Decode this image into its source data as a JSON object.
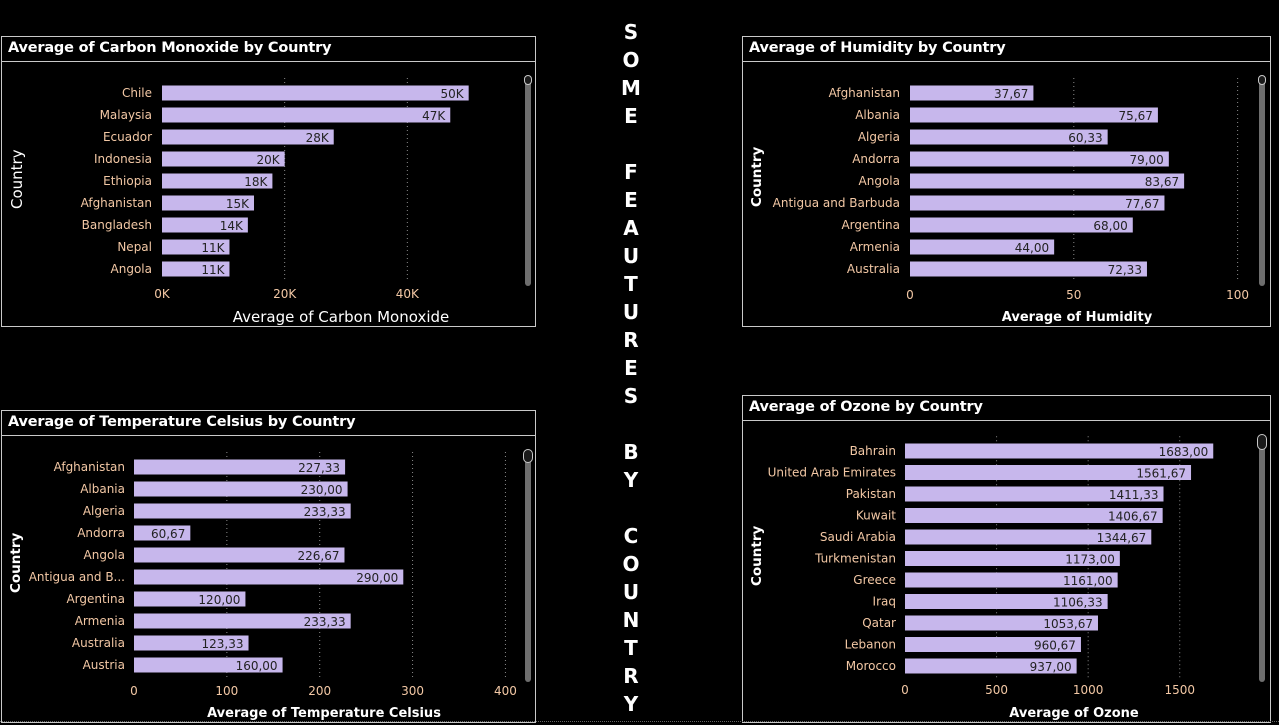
{
  "page_title": "SOME FEAUTURES BY COUNTRY",
  "colors": {
    "bar": "#c7b7ec",
    "category_label": "#f3c8a5",
    "axis_tick": "#f3c8a5",
    "background": "#000000",
    "grid": "#8a8a8a"
  },
  "chart_data": [
    {
      "id": "co",
      "type": "bar",
      "orientation": "horizontal",
      "title": "Average of Carbon Monoxide by Country",
      "xlabel": "Average of Carbon Monoxide",
      "ylabel": "Country",
      "categories": [
        "Chile",
        "Malaysia",
        "Ecuador",
        "Indonesia",
        "Ethiopia",
        "Afghanistan",
        "Bangladesh",
        "Nepal",
        "Angola"
      ],
      "values": [
        50000,
        47000,
        28000,
        20000,
        18000,
        15000,
        14000,
        11000,
        11000
      ],
      "data_labels": [
        "50K",
        "47K",
        "28K",
        "20K",
        "18K",
        "15K",
        "14K",
        "11K",
        "11K"
      ],
      "xlim": [
        0,
        60000
      ],
      "xticks": [
        0,
        20000,
        40000
      ],
      "xtick_labels": [
        "0K",
        "20K",
        "40K"
      ],
      "grid": true
    },
    {
      "id": "hum",
      "type": "bar",
      "orientation": "horizontal",
      "title": "Average of Humidity by Country",
      "xlabel": "Average of Humidity",
      "ylabel": "Country",
      "categories": [
        "Afghanistan",
        "Albania",
        "Algeria",
        "Andorra",
        "Angola",
        "Antigua and Barbuda",
        "Argentina",
        "Armenia",
        "Australia"
      ],
      "values": [
        37.67,
        75.67,
        60.33,
        79.0,
        83.67,
        77.67,
        68.0,
        44.0,
        72.33
      ],
      "data_labels": [
        "37,67",
        "75,67",
        "60,33",
        "79,00",
        "83,67",
        "77,67",
        "68,00",
        "44,00",
        "72,33"
      ],
      "xlim": [
        0,
        105
      ],
      "xticks": [
        0,
        50,
        100
      ],
      "xtick_labels": [
        "0",
        "50",
        "100"
      ],
      "grid": true
    },
    {
      "id": "temp",
      "type": "bar",
      "orientation": "horizontal",
      "title": "Average of Temperature Celsius by Country",
      "xlabel": "Average of Temperature Celsius",
      "ylabel": "Country",
      "categories": [
        "Afghanistan",
        "Albania",
        "Algeria",
        "Andorra",
        "Angola",
        "Antigua and B...",
        "Argentina",
        "Armenia",
        "Australia",
        "Austria"
      ],
      "values": [
        227.33,
        230.0,
        233.33,
        60.67,
        226.67,
        290.0,
        120.0,
        233.33,
        123.33,
        160.0
      ],
      "data_labels": [
        "227,33",
        "230,00",
        "233,33",
        "60,67",
        "226,67",
        "290,00",
        "120,00",
        "233,33",
        "123,33",
        "160,00"
      ],
      "xlim": [
        0,
        420
      ],
      "xticks": [
        0,
        100,
        200,
        300,
        400
      ],
      "xtick_labels": [
        "0",
        "100",
        "200",
        "300",
        "400"
      ],
      "grid": true
    },
    {
      "id": "ozone",
      "type": "bar",
      "orientation": "horizontal",
      "title": "Average of Ozone by Country",
      "xlabel": "Average of Ozone",
      "ylabel": "Country",
      "categories": [
        "Bahrain",
        "United Arab Emirates",
        "Pakistan",
        "Kuwait",
        "Saudi Arabia",
        "Turkmenistan",
        "Greece",
        "Iraq",
        "Qatar",
        "Lebanon",
        "Morocco"
      ],
      "values": [
        1683.0,
        1561.67,
        1411.33,
        1406.67,
        1344.67,
        1173.0,
        1161.0,
        1106.33,
        1053.67,
        960.67,
        937.0
      ],
      "data_labels": [
        "1683,00",
        "1561,67",
        "1411,33",
        "1406,67",
        "1344,67",
        "1173,00",
        "1161,00",
        "1106,33",
        "1053,67",
        "960,67",
        "937,00"
      ],
      "xlim": [
        0,
        1900
      ],
      "xticks": [
        0,
        500,
        1000,
        1500
      ],
      "xtick_labels": [
        "0",
        "500",
        "1000",
        "1500"
      ],
      "grid": true
    }
  ]
}
